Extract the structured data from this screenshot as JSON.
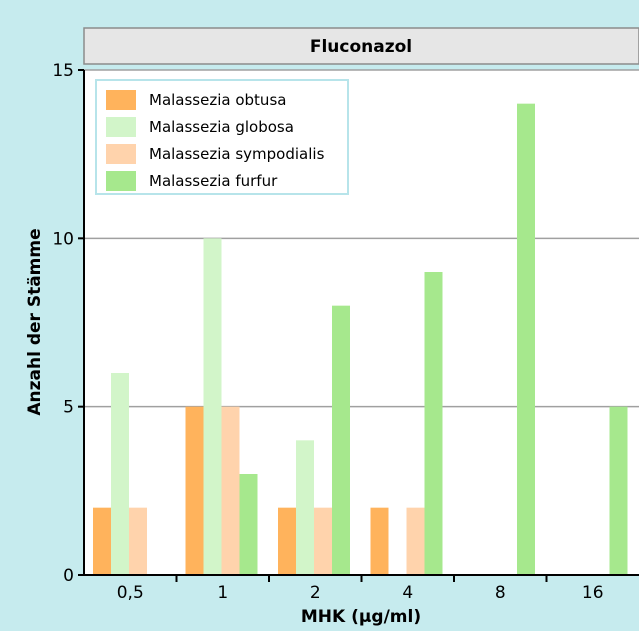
{
  "chart_data": {
    "type": "bar",
    "title": "Fluconazol",
    "xlabel": "MHK (µg/ml)",
    "ylabel": "Anzahl der Stämme",
    "categories": [
      "0,5",
      "1",
      "2",
      "4",
      "8",
      "16"
    ],
    "ylim": [
      0,
      15
    ],
    "yticks": [
      0,
      5,
      10,
      15
    ],
    "grid": true,
    "legend_position": "top-left",
    "series": [
      {
        "name": "Malassezia obtusa",
        "color": "#ffb35c",
        "values": [
          2,
          5,
          2,
          2,
          0,
          0
        ]
      },
      {
        "name": "Malassezia globosa",
        "color": "#d2f5c9",
        "values": [
          6,
          10,
          4,
          0,
          0,
          0
        ]
      },
      {
        "name": "Malassezia sympodialis",
        "color": "#ffd3ac",
        "values": [
          2,
          5,
          2,
          2,
          0,
          0
        ]
      },
      {
        "name": "Malassezia furfur",
        "color": "#a6e88d",
        "values": [
          0,
          3,
          8,
          9,
          14,
          5
        ]
      }
    ]
  }
}
